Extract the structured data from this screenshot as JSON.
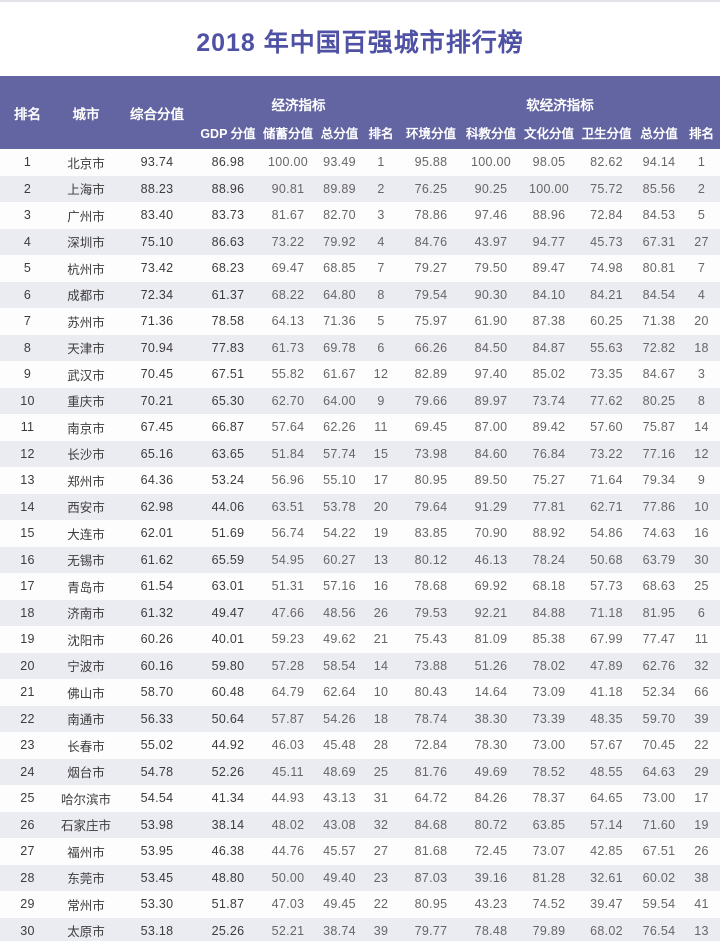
{
  "colors": {
    "header_bg": "#6365a2",
    "header_text": "#ffffff",
    "title_text": "#4f52a4",
    "alt_row_bg": "#ebebf2",
    "primary_text": "#3c3c3c",
    "secondary_text": "#666666"
  },
  "chart_data": {
    "type": "table",
    "title": "2018 年中国百强城市排行榜",
    "group_headers": {
      "economic": "经济指标",
      "soft_economic": "软经济指标"
    },
    "top_columns": {
      "rank": "排名",
      "city": "城市",
      "composite": "综合分值"
    },
    "econ_columns": [
      "GDP 分值",
      "储蓄分值",
      "总分值",
      "排名"
    ],
    "soft_columns": [
      "环境分值",
      "科教分值",
      "文化分值",
      "卫生分值",
      "总分值",
      "排名"
    ],
    "rows": [
      [
        "1",
        "北京市",
        "93.74",
        "86.98",
        "100.00",
        "93.49",
        "1",
        "95.88",
        "100.00",
        "98.05",
        "82.62",
        "94.14",
        "1"
      ],
      [
        "2",
        "上海市",
        "88.23",
        "88.96",
        "90.81",
        "89.89",
        "2",
        "76.25",
        "90.25",
        "100.00",
        "75.72",
        "85.56",
        "2"
      ],
      [
        "3",
        "广州市",
        "83.40",
        "83.73",
        "81.67",
        "82.70",
        "3",
        "78.86",
        "97.46",
        "88.96",
        "72.84",
        "84.53",
        "5"
      ],
      [
        "4",
        "深圳市",
        "75.10",
        "86.63",
        "73.22",
        "79.92",
        "4",
        "84.76",
        "43.97",
        "94.77",
        "45.73",
        "67.31",
        "27"
      ],
      [
        "5",
        "杭州市",
        "73.42",
        "68.23",
        "69.47",
        "68.85",
        "7",
        "79.27",
        "79.50",
        "89.47",
        "74.98",
        "80.81",
        "7"
      ],
      [
        "6",
        "成都市",
        "72.34",
        "61.37",
        "68.22",
        "64.80",
        "8",
        "79.54",
        "90.30",
        "84.10",
        "84.21",
        "84.54",
        "4"
      ],
      [
        "7",
        "苏州市",
        "71.36",
        "78.58",
        "64.13",
        "71.36",
        "5",
        "75.97",
        "61.90",
        "87.38",
        "60.25",
        "71.38",
        "20"
      ],
      [
        "8",
        "天津市",
        "70.94",
        "77.83",
        "61.73",
        "69.78",
        "6",
        "66.26",
        "84.50",
        "84.87",
        "55.63",
        "72.82",
        "18"
      ],
      [
        "9",
        "武汉市",
        "70.45",
        "67.51",
        "55.82",
        "61.67",
        "12",
        "82.89",
        "97.40",
        "85.02",
        "73.35",
        "84.67",
        "3"
      ],
      [
        "10",
        "重庆市",
        "70.21",
        "65.30",
        "62.70",
        "64.00",
        "9",
        "79.66",
        "89.97",
        "73.74",
        "77.62",
        "80.25",
        "8"
      ],
      [
        "11",
        "南京市",
        "67.45",
        "66.87",
        "57.64",
        "62.26",
        "11",
        "69.45",
        "87.00",
        "89.42",
        "57.60",
        "75.87",
        "14"
      ],
      [
        "12",
        "长沙市",
        "65.16",
        "63.65",
        "51.84",
        "57.74",
        "15",
        "73.98",
        "84.60",
        "76.84",
        "73.22",
        "77.16",
        "12"
      ],
      [
        "13",
        "郑州市",
        "64.36",
        "53.24",
        "56.96",
        "55.10",
        "17",
        "80.95",
        "89.50",
        "75.27",
        "71.64",
        "79.34",
        "9"
      ],
      [
        "14",
        "西安市",
        "62.98",
        "44.06",
        "63.51",
        "53.78",
        "20",
        "79.64",
        "91.29",
        "77.81",
        "62.71",
        "77.86",
        "10"
      ],
      [
        "15",
        "大连市",
        "62.01",
        "51.69",
        "56.74",
        "54.22",
        "19",
        "83.85",
        "70.90",
        "88.92",
        "54.86",
        "74.63",
        "16"
      ],
      [
        "16",
        "无锡市",
        "61.62",
        "65.59",
        "54.95",
        "60.27",
        "13",
        "80.12",
        "46.13",
        "78.24",
        "50.68",
        "63.79",
        "30"
      ],
      [
        "17",
        "青岛市",
        "61.54",
        "63.01",
        "51.31",
        "57.16",
        "16",
        "78.68",
        "69.92",
        "68.18",
        "57.73",
        "68.63",
        "25"
      ],
      [
        "18",
        "济南市",
        "61.32",
        "49.47",
        "47.66",
        "48.56",
        "26",
        "79.53",
        "92.21",
        "84.88",
        "71.18",
        "81.95",
        "6"
      ],
      [
        "19",
        "沈阳市",
        "60.26",
        "40.01",
        "59.23",
        "49.62",
        "21",
        "75.43",
        "81.09",
        "85.38",
        "67.99",
        "77.47",
        "11"
      ],
      [
        "20",
        "宁波市",
        "60.16",
        "59.80",
        "57.28",
        "58.54",
        "14",
        "73.88",
        "51.26",
        "78.02",
        "47.89",
        "62.76",
        "32"
      ],
      [
        "21",
        "佛山市",
        "58.70",
        "60.48",
        "64.79",
        "62.64",
        "10",
        "80.43",
        "14.64",
        "73.09",
        "41.18",
        "52.34",
        "66"
      ],
      [
        "22",
        "南通市",
        "56.33",
        "50.64",
        "57.87",
        "54.26",
        "18",
        "78.74",
        "38.30",
        "73.39",
        "48.35",
        "59.70",
        "39"
      ],
      [
        "23",
        "长春市",
        "55.02",
        "44.92",
        "46.03",
        "45.48",
        "28",
        "72.84",
        "78.30",
        "73.00",
        "57.67",
        "70.45",
        "22"
      ],
      [
        "24",
        "烟台市",
        "54.78",
        "52.26",
        "45.11",
        "48.69",
        "25",
        "81.76",
        "49.69",
        "78.52",
        "48.55",
        "64.63",
        "29"
      ],
      [
        "25",
        "哈尔滨市",
        "54.54",
        "41.34",
        "44.93",
        "43.13",
        "31",
        "64.72",
        "84.26",
        "78.37",
        "64.65",
        "73.00",
        "17"
      ],
      [
        "26",
        "石家庄市",
        "53.98",
        "38.14",
        "48.02",
        "43.08",
        "32",
        "84.68",
        "80.72",
        "63.85",
        "57.14",
        "71.60",
        "19"
      ],
      [
        "27",
        "福州市",
        "53.95",
        "46.38",
        "44.76",
        "45.57",
        "27",
        "81.68",
        "72.45",
        "73.07",
        "42.85",
        "67.51",
        "26"
      ],
      [
        "28",
        "东莞市",
        "53.45",
        "48.80",
        "50.00",
        "49.40",
        "23",
        "87.03",
        "39.16",
        "81.28",
        "32.61",
        "60.02",
        "38"
      ],
      [
        "29",
        "常州市",
        "53.30",
        "51.87",
        "47.03",
        "49.45",
        "22",
        "80.95",
        "43.23",
        "74.52",
        "39.47",
        "59.54",
        "41"
      ],
      [
        "30",
        "太原市",
        "53.18",
        "25.26",
        "52.21",
        "38.74",
        "39",
        "79.77",
        "78.48",
        "79.89",
        "68.02",
        "76.54",
        "13"
      ]
    ]
  }
}
